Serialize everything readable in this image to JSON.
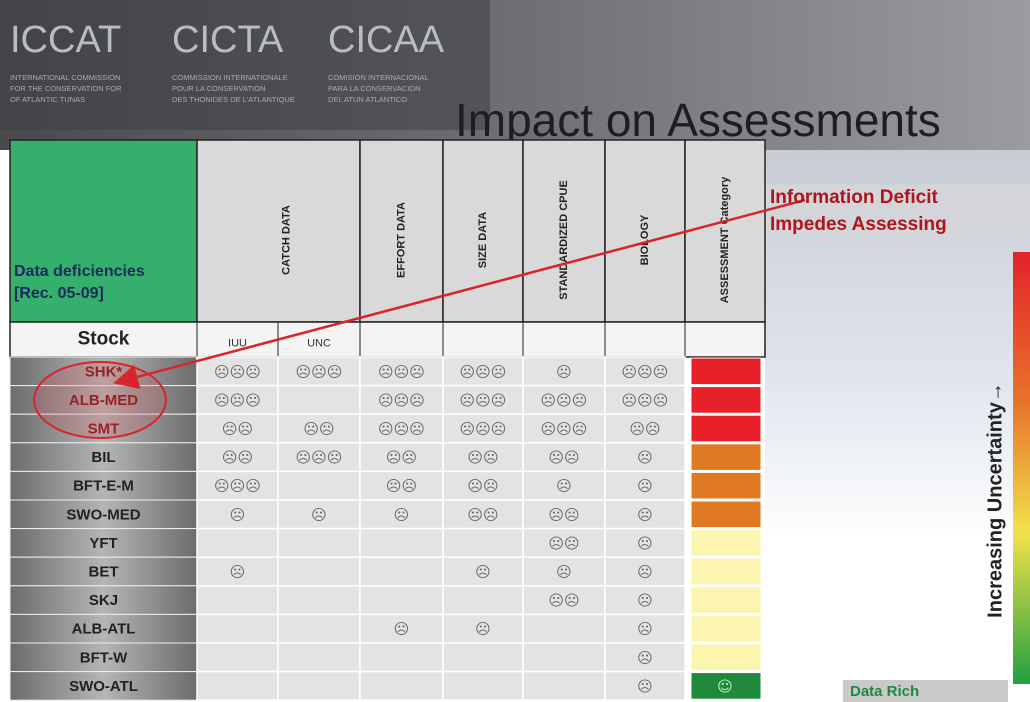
{
  "header": {
    "logos": [
      {
        "name": "ICCAT",
        "lines": [
          "INTERNATIONAL COMMISSION",
          "FOR THE CONSERVATION FOR",
          "OF ATLANTIC TUNAS"
        ]
      },
      {
        "name": "CICTA",
        "lines": [
          "COMMISSION INTERNATIONALE",
          "POUR LA CONSERVATION",
          "DES THONIDES DE L'ATLANTIQUE"
        ]
      },
      {
        "name": "CICAA",
        "lines": [
          "COMISION INTERNACIONAL",
          "PARA LA CONSERVACION",
          "DEL ATUN ATLANTICO"
        ]
      }
    ],
    "title": "Impact on Assessments"
  },
  "table": {
    "corner": [
      "Data deficiencies",
      "[Rec. 05-09]"
    ],
    "columns": [
      "CATCH DATA",
      "EFFORT DATA",
      "SIZE DATA",
      "STANDARDIZED CPUE",
      "BIOLOGY",
      "ASSESSMENT Category"
    ],
    "stock_label": "Stock",
    "subcolumns": [
      "IUU",
      "UNC"
    ],
    "rows": [
      {
        "stock": "SHK*",
        "cells": [
          "☹☹☹",
          "☹☹☹",
          "☹☹☹",
          "☹☹☹",
          "☹",
          "☹☹☹"
        ],
        "category_color": "#e8202a"
      },
      {
        "stock": "ALB-MED",
        "cells": [
          "☹☹☹",
          null,
          "☹☹☹",
          "☹☹☹",
          "☹☹☹",
          "☹☹☹"
        ],
        "category_color": "#e8202a"
      },
      {
        "stock": "SMT",
        "cells": [
          "☹☹",
          "☹☹",
          "☹☹☹",
          "☹☹☹",
          "☹☹☹",
          "☹☹"
        ],
        "category_color": "#e8202a"
      },
      {
        "stock": "BIL",
        "cells": [
          "☹☹",
          "☹☹☹",
          "☹☹",
          "☹☹",
          "☹☹",
          "☹"
        ],
        "category_color": "#e07a22"
      },
      {
        "stock": "BFT-E-M",
        "cells": [
          "☹☹☹",
          null,
          "☹☹",
          "☹☹",
          "☹",
          "☹"
        ],
        "category_color": "#e07a22"
      },
      {
        "stock": "SWO-MED",
        "cells": [
          "☹",
          "☹",
          "☹",
          "☹☹",
          "☹☹",
          "☹"
        ],
        "category_color": "#e07a22"
      },
      {
        "stock": "YFT",
        "cells": [
          null,
          null,
          null,
          null,
          "☹☹",
          "☹"
        ],
        "category_color": "#fbf5b0"
      },
      {
        "stock": "BET",
        "cells": [
          "☹",
          null,
          null,
          "☹",
          "☹",
          "☹"
        ],
        "category_color": "#fbf5b0"
      },
      {
        "stock": "SKJ",
        "cells": [
          null,
          null,
          null,
          null,
          "☹☹",
          "☹"
        ],
        "category_color": "#fbf5b0"
      },
      {
        "stock": "ALB-ATL",
        "cells": [
          null,
          null,
          "☹",
          "☹",
          null,
          "☹"
        ],
        "category_color": "#fbf5b0"
      },
      {
        "stock": "BFT-W",
        "cells": [
          null,
          null,
          null,
          null,
          null,
          "☹"
        ],
        "category_color": "#fbf5b0"
      },
      {
        "stock": "SWO-ATL",
        "cells": [
          null,
          null,
          null,
          null,
          null,
          "☹"
        ],
        "category_color": "#1f8a3c",
        "category_symbol": "☺"
      }
    ]
  },
  "callout": [
    "Information  Deficit",
    "Impedes Assessing"
  ],
  "scale": {
    "label": "Increasing Uncertainty→",
    "bottom_label": "Data Rich"
  }
}
